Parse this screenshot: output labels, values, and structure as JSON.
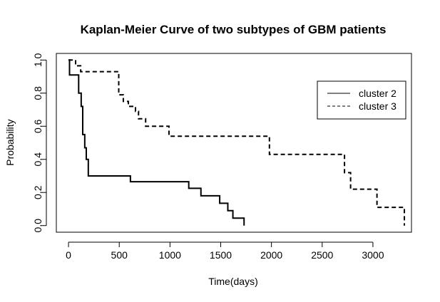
{
  "chart_data": {
    "type": "line",
    "title": "Kaplan-Meier Curve of two subtypes of GBM patients",
    "xlabel": "Time(days)",
    "ylabel": "Probability",
    "xlim": [
      -120,
      3380
    ],
    "ylim": [
      -0.04,
      1.04
    ],
    "xticks": [
      0,
      500,
      1000,
      1500,
      2000,
      2500,
      3000
    ],
    "yticks": [
      0.0,
      0.2,
      0.4,
      0.6,
      0.8,
      1.0
    ],
    "xtick_labels": [
      "0",
      "500",
      "1000",
      "1500",
      "2000",
      "2500",
      "3000"
    ],
    "ytick_labels": [
      "0.0",
      "0.2",
      "0.4",
      "0.6",
      "0.8",
      "1.0"
    ],
    "grid": false,
    "legend_position": "top-right",
    "series": [
      {
        "name": "cluster 2",
        "style": "solid",
        "color": "#000000",
        "steps": [
          [
            0,
            1.0
          ],
          [
            10,
            0.91
          ],
          [
            100,
            0.8
          ],
          [
            125,
            0.72
          ],
          [
            140,
            0.55
          ],
          [
            160,
            0.47
          ],
          [
            175,
            0.4
          ],
          [
            195,
            0.3
          ],
          [
            610,
            0.265
          ],
          [
            1185,
            0.225
          ],
          [
            1305,
            0.18
          ],
          [
            1490,
            0.135
          ],
          [
            1570,
            0.09
          ],
          [
            1620,
            0.045
          ],
          [
            1730,
            0.0
          ]
        ],
        "end": 1730
      },
      {
        "name": "cluster 3",
        "style": "dashed",
        "color": "#000000",
        "steps": [
          [
            0,
            1.0
          ],
          [
            70,
            0.965
          ],
          [
            120,
            0.93
          ],
          [
            495,
            0.79
          ],
          [
            540,
            0.75
          ],
          [
            590,
            0.72
          ],
          [
            660,
            0.69
          ],
          [
            690,
            0.645
          ],
          [
            760,
            0.6
          ],
          [
            990,
            0.54
          ],
          [
            1980,
            0.43
          ],
          [
            2720,
            0.32
          ],
          [
            2780,
            0.22
          ],
          [
            3040,
            0.11
          ],
          [
            3310,
            0.0
          ]
        ],
        "end": 3310
      }
    ]
  }
}
